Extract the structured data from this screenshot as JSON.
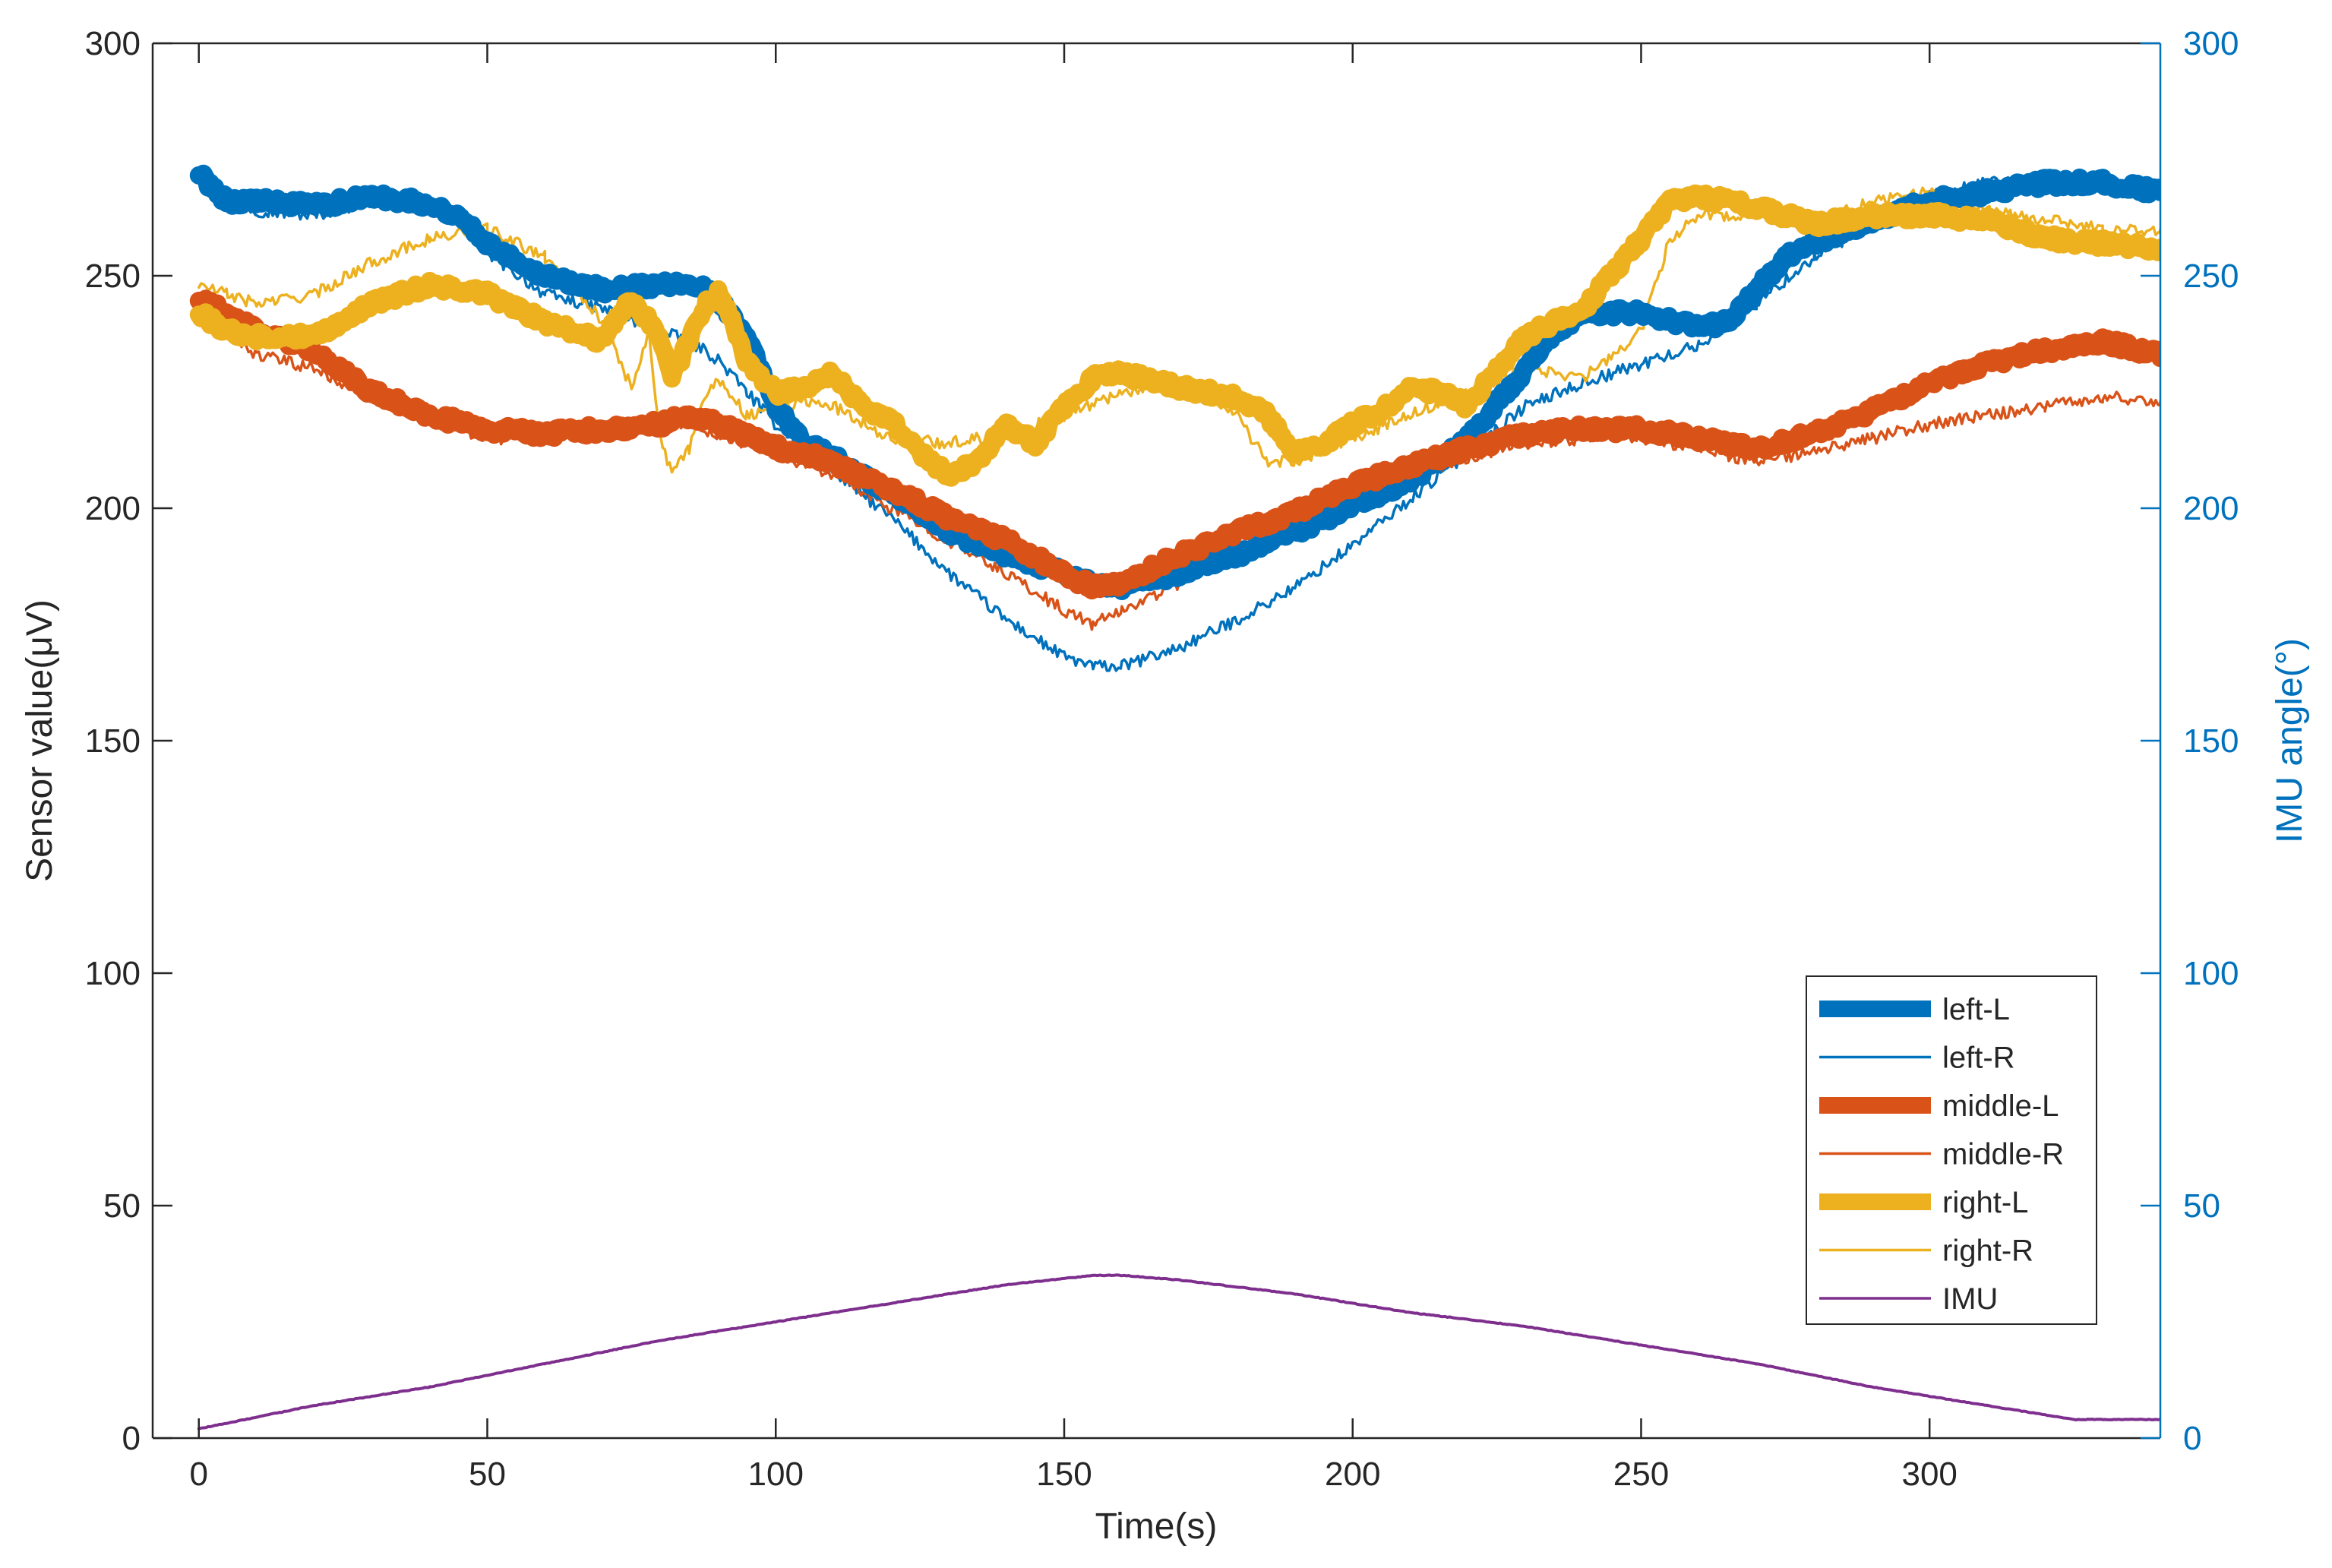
{
  "chart_data": {
    "type": "line",
    "title": "",
    "xlabel": "Time(s)",
    "ylabel": "Sensor value(μV)",
    "y2label": "IMU angle(°)",
    "xlim": [
      -8,
      340
    ],
    "ylim": [
      0,
      300
    ],
    "y2lim": [
      0,
      300
    ],
    "xticks": [
      0,
      50,
      100,
      150,
      200,
      250,
      300
    ],
    "yticks": [
      0,
      50,
      100,
      150,
      200,
      250,
      300
    ],
    "y2ticks": [
      0,
      50,
      100,
      150,
      200,
      250,
      300
    ],
    "grid": false,
    "legend_position": "bottom-right",
    "colors": {
      "axis": "#262626",
      "right_axis": "#0072BD"
    },
    "series": [
      {
        "name": "left-L",
        "color": "#0072BD",
        "style": "thick",
        "axis": "left",
        "x": [
          0,
          5,
          10,
          20,
          30,
          38,
          45,
          50,
          60,
          70,
          80,
          85,
          90,
          95,
          100,
          105,
          110,
          120,
          130,
          140,
          150,
          155,
          160,
          170,
          180,
          190,
          200,
          210,
          220,
          230,
          235,
          240,
          250,
          260,
          265,
          270,
          275,
          280,
          290,
          300,
          310,
          320,
          330,
          340
        ],
        "y": [
          272,
          266,
          266,
          265,
          267,
          266,
          263,
          257,
          250,
          247,
          248,
          249,
          245,
          237,
          222,
          214,
          211,
          203,
          195,
          190,
          186,
          184,
          183,
          186,
          190,
          195,
          200,
          206,
          215,
          230,
          238,
          242,
          242,
          239,
          240,
          247,
          254,
          257,
          262,
          266,
          268,
          270,
          270,
          268
        ]
      },
      {
        "name": "left-R",
        "color": "#0072BD",
        "style": "thin",
        "axis": "left",
        "x": [
          0,
          5,
          10,
          20,
          30,
          38,
          45,
          50,
          60,
          70,
          80,
          85,
          90,
          95,
          100,
          105,
          110,
          120,
          130,
          140,
          150,
          155,
          160,
          170,
          180,
          190,
          200,
          210,
          220,
          230,
          240,
          250,
          260,
          270,
          280,
          290,
          300,
          310,
          320,
          330,
          340
        ],
        "y": [
          272,
          266,
          264,
          263,
          266,
          265,
          262,
          255,
          246,
          243,
          238,
          236,
          232,
          225,
          218,
          214,
          208,
          198,
          186,
          176,
          168,
          166,
          166,
          170,
          176,
          183,
          192,
          202,
          212,
          222,
          227,
          231,
          235,
          244,
          254,
          261,
          267,
          270,
          270,
          269,
          268
        ]
      },
      {
        "name": "middle-L",
        "color": "#D95319",
        "style": "thick",
        "axis": "left",
        "x": [
          0,
          5,
          10,
          20,
          30,
          40,
          50,
          60,
          70,
          80,
          85,
          90,
          100,
          110,
          120,
          130,
          140,
          150,
          155,
          160,
          170,
          180,
          190,
          200,
          210,
          220,
          230,
          240,
          250,
          260,
          270,
          280,
          290,
          300,
          310,
          320,
          330,
          340
        ],
        "y": [
          245,
          242,
          238,
          234,
          225,
          220,
          217,
          216,
          217,
          218,
          220,
          218,
          213,
          210,
          204,
          198,
          193,
          186,
          183,
          184,
          190,
          195,
          199,
          205,
          209,
          213,
          216,
          217,
          217,
          215,
          213,
          216,
          221,
          227,
          231,
          234,
          236,
          233
        ]
      },
      {
        "name": "middle-R",
        "color": "#D95319",
        "style": "thin",
        "axis": "left",
        "x": [
          0,
          5,
          10,
          20,
          30,
          40,
          50,
          60,
          70,
          80,
          85,
          90,
          100,
          110,
          120,
          130,
          140,
          150,
          155,
          160,
          170,
          180,
          190,
          200,
          210,
          220,
          230,
          240,
          250,
          260,
          270,
          280,
          290,
          300,
          310,
          320,
          330,
          340
        ],
        "y": [
          243,
          238,
          233,
          230,
          224,
          219,
          215,
          215,
          216,
          218,
          218,
          216,
          212,
          207,
          200,
          193,
          186,
          178,
          175,
          178,
          184,
          190,
          196,
          202,
          207,
          211,
          214,
          215,
          215,
          213,
          210,
          212,
          215,
          218,
          220,
          222,
          224,
          223
        ]
      },
      {
        "name": "right-L",
        "color": "#EDB120",
        "style": "thick",
        "axis": "left",
        "x": [
          0,
          5,
          10,
          20,
          30,
          40,
          50,
          60,
          65,
          70,
          75,
          80,
          82,
          85,
          88,
          90,
          92,
          95,
          100,
          105,
          110,
          115,
          120,
          125,
          130,
          135,
          140,
          145,
          150,
          155,
          160,
          170,
          180,
          185,
          190,
          195,
          200,
          205,
          210,
          215,
          220,
          225,
          230,
          240,
          250,
          255,
          260,
          270,
          280,
          290,
          300,
          310,
          320,
          330,
          340
        ],
        "y": [
          242,
          238,
          237,
          237,
          244,
          248,
          246,
          240,
          238,
          236,
          245,
          237,
          228,
          236,
          244,
          246,
          242,
          231,
          225,
          226,
          229,
          222,
          219,
          212,
          207,
          210,
          218,
          214,
          222,
          228,
          229,
          226,
          224,
          220,
          212,
          214,
          218,
          221,
          226,
          225,
          222,
          230,
          237,
          243,
          258,
          266,
          267,
          265,
          261,
          263,
          263,
          262,
          258,
          257,
          256
        ]
      },
      {
        "name": "right-R",
        "color": "#EDB120",
        "style": "thin",
        "axis": "left",
        "x": [
          0,
          5,
          10,
          20,
          30,
          40,
          50,
          60,
          65,
          70,
          75,
          78,
          80,
          82,
          85,
          88,
          90,
          95,
          100,
          105,
          110,
          120,
          130,
          140,
          150,
          160,
          170,
          180,
          185,
          190,
          200,
          210,
          220,
          230,
          240,
          250,
          255,
          260,
          270,
          280,
          290,
          300,
          310,
          320,
          330,
          340
        ],
        "y": [
          248,
          246,
          244,
          246,
          253,
          258,
          260,
          254,
          248,
          240,
          226,
          238,
          215,
          207,
          213,
          225,
          228,
          220,
          221,
          223,
          222,
          215,
          214,
          216,
          220,
          225,
          227,
          220,
          210,
          210,
          215,
          220,
          225,
          230,
          228,
          238,
          258,
          263,
          263,
          262,
          266,
          268,
          264,
          262,
          260,
          260
        ]
      },
      {
        "name": "IMU",
        "color": "#7E2F8E",
        "style": "thin",
        "axis": "right",
        "x": [
          0,
          20,
          40,
          60,
          80,
          100,
          120,
          140,
          155,
          160,
          170,
          190,
          210,
          230,
          250,
          270,
          290,
          310,
          325,
          330,
          340
        ],
        "y": [
          2,
          7,
          11,
          16,
          21,
          25,
          29,
          33,
          35,
          35,
          34,
          31,
          27,
          24,
          20,
          16,
          11,
          7,
          4,
          4,
          4
        ]
      }
    ]
  }
}
